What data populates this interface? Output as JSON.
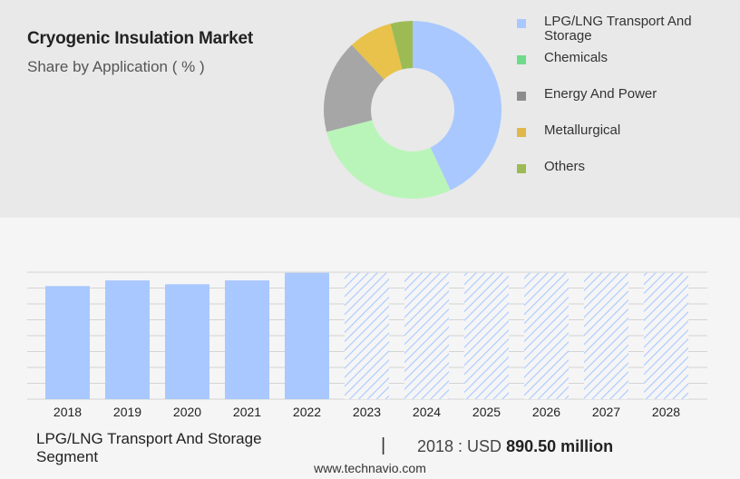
{
  "header": {
    "title": "Cryogenic Insulation Market",
    "subtitle": "Share by Application ( % )"
  },
  "colors": {
    "top_panel": "#e9e9e9",
    "bottom_panel": "#f5f5f5",
    "bar_actual": "#a9c8ff",
    "bar_forecast_hatch": "#a9c8ff"
  },
  "chart_data": [
    {
      "type": "pie",
      "subtype": "donut",
      "title": "Share by Application ( % )",
      "labels": [
        "LPG/LNG Transport And Storage",
        "Chemicals",
        "Energy And Power",
        "Metallurgical",
        "Others"
      ],
      "values": [
        43,
        28,
        17,
        8,
        4
      ],
      "colors": [
        "#a9c8ff",
        "#b9f5b9",
        "#a6a6a6",
        "#e8c24a",
        "#9dbb55"
      ],
      "legend_swatch_colors": [
        "#a9c8ff",
        "#6edb8a",
        "#8c8c8c",
        "#e0b84a",
        "#9dbb55"
      ],
      "legend_placement": "right"
    },
    {
      "type": "bar",
      "categories": [
        "2018",
        "2019",
        "2020",
        "2021",
        "2022",
        "2023",
        "2024",
        "2025",
        "2026",
        "2027",
        "2028"
      ],
      "values": [
        890.5,
        935,
        905,
        935,
        995,
        995,
        995,
        995,
        995,
        995,
        995
      ],
      "forecast": [
        false,
        false,
        false,
        false,
        false,
        true,
        true,
        true,
        true,
        true,
        true
      ],
      "ylim": [
        0,
        1000
      ],
      "grid": true,
      "xlabel": "",
      "ylabel": ""
    }
  ],
  "segment": {
    "label": "LPG/LNG Transport And Storage Segment",
    "separator": "|",
    "stat_prefix": "2018 : USD",
    "stat_value": "890.50 million"
  },
  "footer": {
    "source": "www.technavio.com"
  }
}
